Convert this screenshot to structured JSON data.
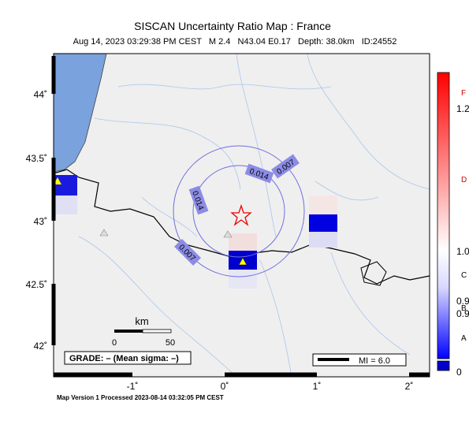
{
  "header": {
    "title": "SISCAN Uncertainty Ratio Map : France",
    "subtitle": "Aug 14, 2023 03:29:38 PM CEST   M 2.4   N43.04 E0.17   Depth: 38.0km   ID:24552"
  },
  "map": {
    "lat_labels": [
      "44˚",
      "43.5˚",
      "43˚",
      "42.5˚",
      "42˚"
    ],
    "lon_labels": [
      "-1˚",
      "0˚",
      "1˚",
      "2˚"
    ],
    "contour_labels": [
      "0.007",
      "0.014",
      "0.014",
      "0.007"
    ],
    "scale": {
      "unit": "km",
      "start": "0",
      "end": "50"
    },
    "grade": "GRADE: – (Mean sigma: –)",
    "mi": "MI = 6.0"
  },
  "colorbar": {
    "letters": [
      "F",
      "D",
      "C",
      "B",
      "A"
    ],
    "numbers": [
      "1.2",
      "1.0",
      "0.9",
      "0.9",
      "0"
    ]
  },
  "footer": "Map Version 1 Processed 2023-08-14 03:32:05 PM CEST"
}
